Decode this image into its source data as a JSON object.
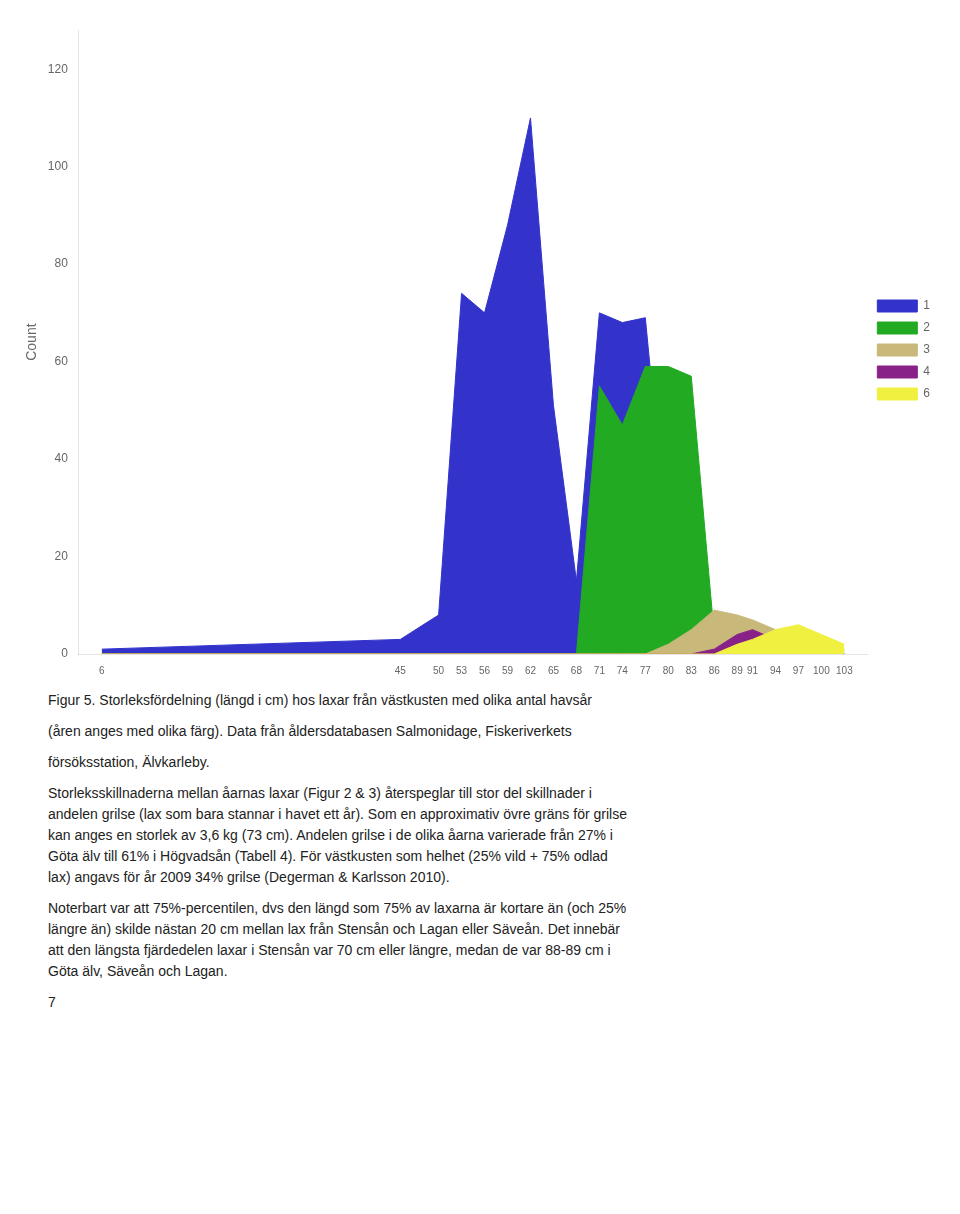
{
  "chart_data": {
    "type": "area",
    "x_label": null,
    "y_label": "Count",
    "x": [
      6,
      45,
      50,
      53,
      56,
      59,
      62,
      65,
      68,
      71,
      74,
      77,
      80,
      83,
      86,
      89,
      91,
      94,
      97,
      100,
      103
    ],
    "series": [
      {
        "name": "1",
        "color": "#3333cc",
        "values": [
          1,
          3,
          8,
          74,
          70,
          88,
          110,
          51,
          15,
          70,
          68,
          69,
          20,
          8,
          5,
          3,
          2,
          1,
          0,
          0,
          0
        ]
      },
      {
        "name": "2",
        "color": "#22aa22",
        "values": [
          0,
          0,
          0,
          0,
          0,
          0,
          0,
          0,
          0,
          55,
          47,
          59,
          59,
          57,
          4,
          2,
          1,
          1,
          0,
          0,
          0
        ]
      },
      {
        "name": "3",
        "color": "#c8b87a",
        "values": [
          0,
          0,
          0,
          0,
          0,
          0,
          0,
          0,
          0,
          0,
          0,
          0,
          2,
          5,
          9,
          8,
          7,
          5,
          4,
          3,
          1
        ]
      },
      {
        "name": "4",
        "color": "#882288",
        "values": [
          0,
          0,
          0,
          0,
          0,
          0,
          0,
          0,
          0,
          0,
          0,
          0,
          0,
          0,
          1,
          4,
          5,
          3,
          2,
          1,
          0
        ]
      },
      {
        "name": "6",
        "color": "#f0f040",
        "values": [
          0,
          0,
          0,
          0,
          0,
          0,
          0,
          0,
          0,
          0,
          0,
          0,
          0,
          0,
          0,
          2,
          3,
          5,
          6,
          4,
          2
        ]
      }
    ],
    "xlim": [
      3,
      106
    ],
    "xticks": [
      6,
      45,
      50,
      53,
      56,
      59,
      62,
      65,
      68,
      71,
      74,
      77,
      80,
      83,
      86,
      89,
      91,
      94,
      97,
      100,
      103
    ],
    "ylim": [
      0,
      128
    ],
    "yticks": [
      0,
      20,
      40,
      60,
      80,
      100,
      120
    ],
    "grid": false,
    "legend": "right",
    "annotations": [
      "Figur 5. Storleksfördelning (längd i cm) hos laxar från västkusten med olika antal havsår",
      "(åren anges med olika färg). Data från åldersdatabasen Salmonidage, Fiskeriverkets",
      "försöksstation, Älvkarleby.",
      "Storleksskillnaderna mellan åarnas laxar (Figur 2 & 3) återspeglar till stor del skillnader i\nandelen grilse (lax som bara stannar i havet ett år). Som en approximativ övre gräns för grilse\nkan anges en storlek av 3,6 kg (73 cm). Andelen grilse i de olika åarna varierade från 27% i\nGöta älv till 61% i Högvadsån (Tabell 4). För västkusten som helhet (25% vild + 75% odlad\nlax) angavs för år 2009 34% grilse (Degerman & Karlsson 2010).",
      "Noterbart var att 75%-percentilen, dvs den längd som 75% av laxarna är kortare än (och 25%\nlängre än) skilde nästan 20 cm mellan lax från Stensån och Lagan eller Säveån. Det innebär\natt den längsta fjärdedelen laxar i Stensån var 70 cm eller längre, medan de var 88-89 cm i\nGöta älv, Säveån och Lagan.",
      "7"
    ]
  }
}
